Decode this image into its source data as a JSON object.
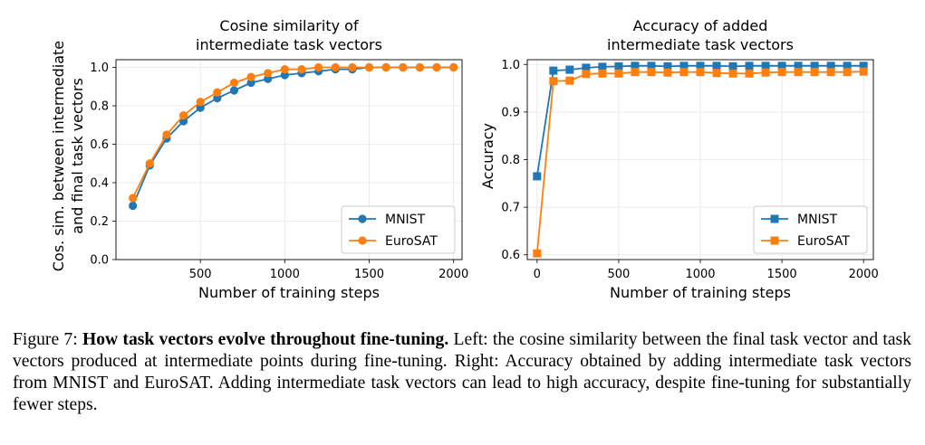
{
  "chart_data": [
    {
      "type": "line",
      "title": "Cosine similarity of\nintermediate task vectors",
      "xlabel": "Number of training steps",
      "ylabel": "Cos. sim. between intermediate\nand final task vectors",
      "xlim": [
        0,
        2050
      ],
      "ylim": [
        0.0,
        1.04
      ],
      "xticks": [
        500,
        1000,
        1500,
        2000
      ],
      "yticks": [
        0.0,
        0.2,
        0.4,
        0.6,
        0.8,
        1.0
      ],
      "marker": "circle",
      "grid": true,
      "legend_position": "lower-right",
      "x": [
        100,
        200,
        300,
        400,
        500,
        600,
        700,
        800,
        900,
        1000,
        1100,
        1200,
        1300,
        1400,
        1500,
        1600,
        1700,
        1800,
        1900,
        2000
      ],
      "series": [
        {
          "name": "MNIST",
          "color": "#1f77b4",
          "values": [
            0.28,
            0.49,
            0.63,
            0.72,
            0.79,
            0.84,
            0.88,
            0.92,
            0.94,
            0.96,
            0.97,
            0.98,
            0.99,
            0.99,
            1.0,
            1.0,
            1.0,
            1.0,
            1.0,
            1.0
          ]
        },
        {
          "name": "EuroSAT",
          "color": "#ff7f0e",
          "values": [
            0.32,
            0.5,
            0.65,
            0.75,
            0.82,
            0.87,
            0.92,
            0.95,
            0.97,
            0.99,
            0.99,
            1.0,
            1.0,
            1.0,
            1.0,
            1.0,
            1.0,
            1.0,
            1.0,
            1.0
          ]
        }
      ]
    },
    {
      "type": "line",
      "title": "Accuracy of added\nintermediate task vectors",
      "xlabel": "Number of training steps",
      "ylabel": "Accuracy",
      "xlim": [
        -60,
        2060
      ],
      "ylim": [
        0.59,
        1.01
      ],
      "xticks": [
        0,
        500,
        1000,
        1500,
        2000
      ],
      "yticks": [
        0.6,
        0.7,
        0.8,
        0.9,
        1.0
      ],
      "marker": "square",
      "grid": true,
      "legend_position": "lower-right",
      "x": [
        0,
        100,
        200,
        300,
        400,
        500,
        600,
        700,
        800,
        900,
        1000,
        1100,
        1200,
        1300,
        1400,
        1500,
        1600,
        1700,
        1800,
        1900,
        2000
      ],
      "series": [
        {
          "name": "MNIST",
          "color": "#1f77b4",
          "values": [
            0.765,
            0.987,
            0.989,
            0.993,
            0.995,
            0.996,
            0.997,
            0.997,
            0.996,
            0.997,
            0.997,
            0.997,
            0.996,
            0.997,
            0.997,
            0.997,
            0.997,
            0.997,
            0.997,
            0.997,
            0.997
          ]
        },
        {
          "name": "EuroSAT",
          "color": "#ff7f0e",
          "values": [
            0.603,
            0.965,
            0.966,
            0.98,
            0.981,
            0.981,
            0.984,
            0.984,
            0.983,
            0.984,
            0.984,
            0.982,
            0.981,
            0.981,
            0.983,
            0.984,
            0.984,
            0.984,
            0.984,
            0.984,
            0.985
          ]
        }
      ]
    }
  ],
  "caption": {
    "prefix": "Figure 7: ",
    "bold": "How task vectors evolve throughout fine-tuning.",
    "rest": " Left: the cosine similarity between the final task vector and task vectors produced at intermediate points during fine-tuning. Right: Accuracy obtained by adding intermediate task vectors from MNIST and EuroSAT. Adding intermediate task vectors can lead to high accuracy, despite fine-tuning for substantially fewer steps."
  }
}
